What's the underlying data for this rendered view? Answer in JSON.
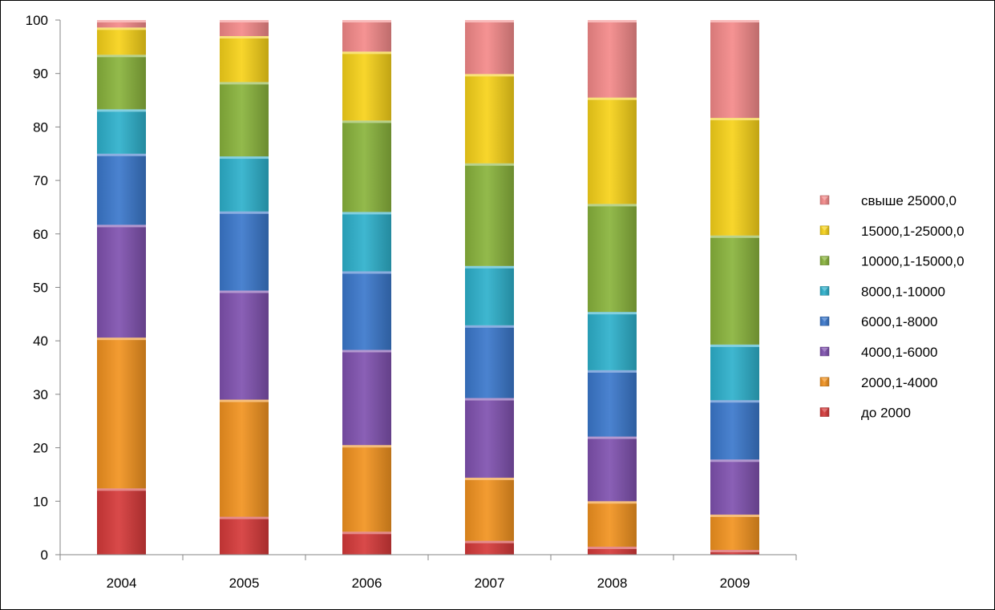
{
  "chart_data": {
    "type": "bar",
    "stacked": true,
    "categories": [
      "2004",
      "2005",
      "2006",
      "2007",
      "2008",
      "2009"
    ],
    "ylim": [
      0,
      100
    ],
    "yticks": [
      0,
      10,
      20,
      30,
      40,
      50,
      60,
      70,
      80,
      90,
      100
    ],
    "grid": false,
    "legend_position": "right",
    "series": [
      {
        "name": "до 2000",
        "color": "#d63a3a",
        "values": [
          12.4,
          7.1,
          4.3,
          2.6,
          1.5,
          0.9
        ]
      },
      {
        "name": "2000,1-4000",
        "color": "#f29320",
        "values": [
          28.2,
          21.9,
          16.2,
          11.8,
          8.5,
          6.6
        ]
      },
      {
        "name": "4000,1-6000",
        "color": "#8052b0",
        "values": [
          21.1,
          20.4,
          17.8,
          14.9,
          12.1,
          10.3
        ]
      },
      {
        "name": "6000,1-8000",
        "color": "#3b78cc",
        "values": [
          13.3,
          14.8,
          14.7,
          13.6,
          12.4,
          11.1
        ]
      },
      {
        "name": "8000,1-10000",
        "color": "#2eb1cc",
        "values": [
          8.3,
          10.3,
          11.1,
          11.1,
          10.9,
          10.4
        ]
      },
      {
        "name": "10000,1-15000,0",
        "color": "#8ab43c",
        "values": [
          10.2,
          13.9,
          17.1,
          19.2,
          20.2,
          20.4
        ]
      },
      {
        "name": "15000,1-25000,0",
        "color": "#f7d21a",
        "values": [
          5.1,
          8.6,
          12.9,
          16.7,
          19.9,
          22.0
        ]
      },
      {
        "name": "свыше 25000,0",
        "color": "#f48a8a",
        "values": [
          1.4,
          3.0,
          5.9,
          10.1,
          14.5,
          18.3
        ]
      }
    ]
  }
}
